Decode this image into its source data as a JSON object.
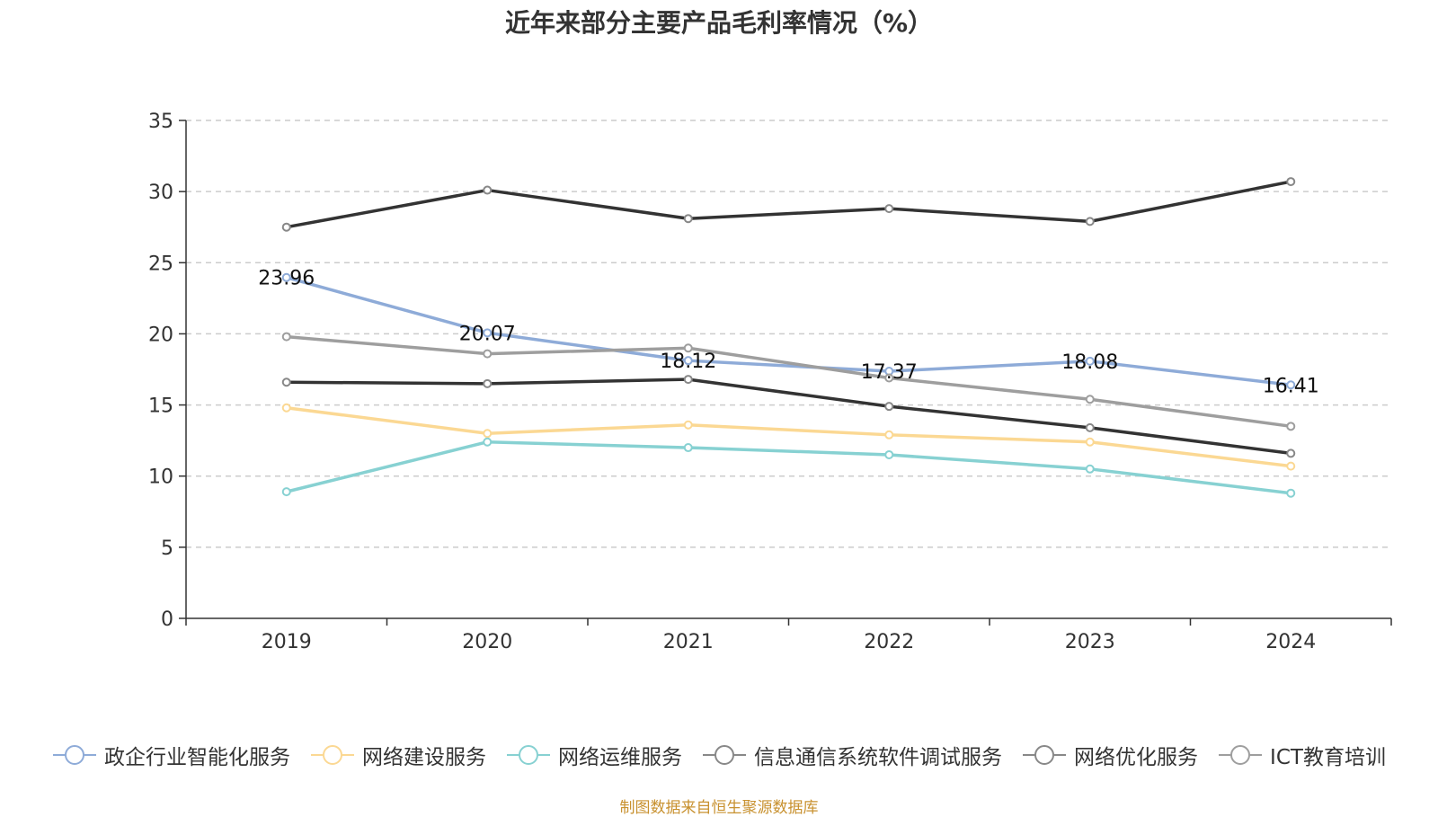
{
  "chart_data": {
    "type": "line",
    "title": "近年来部分主要产品毛利率情况（%）",
    "x": [
      "2019",
      "2020",
      "2021",
      "2022",
      "2023",
      "2024"
    ],
    "ylim": [
      0,
      35
    ],
    "yticks": [
      0,
      5,
      10,
      15,
      20,
      25,
      30,
      35
    ],
    "grid": true,
    "legend_position": "bottom",
    "series": [
      {
        "name": "政企行业智能化服务",
        "color": "#8eabd8",
        "values": [
          23.96,
          20.07,
          18.12,
          17.37,
          18.08,
          16.41
        ],
        "labels": [
          "23.96",
          "20.07",
          "18.12",
          "17.37",
          "18.08",
          "16.41"
        ]
      },
      {
        "name": "网络建设服务",
        "color": "#fbd893",
        "values": [
          14.8,
          13.0,
          13.6,
          12.9,
          12.4,
          10.7
        ]
      },
      {
        "name": "网络运维服务",
        "color": "#87d1d2",
        "values": [
          8.9,
          12.4,
          12.0,
          11.5,
          10.5,
          8.8
        ]
      },
      {
        "name": "信息通信系统软件调试服务",
        "color": "#333333",
        "values": [
          27.5,
          30.1,
          28.1,
          28.8,
          27.9,
          30.7
        ]
      },
      {
        "name": "网络优化服务",
        "color": "#333333",
        "values": [
          16.6,
          16.5,
          16.8,
          14.9,
          13.4,
          11.6
        ]
      },
      {
        "name": "ICT教育培训",
        "color": "#9e9e9e",
        "values": [
          19.8,
          18.6,
          19.0,
          16.9,
          15.4,
          13.5
        ]
      }
    ],
    "source": "制图数据来自恒生聚源数据库"
  }
}
